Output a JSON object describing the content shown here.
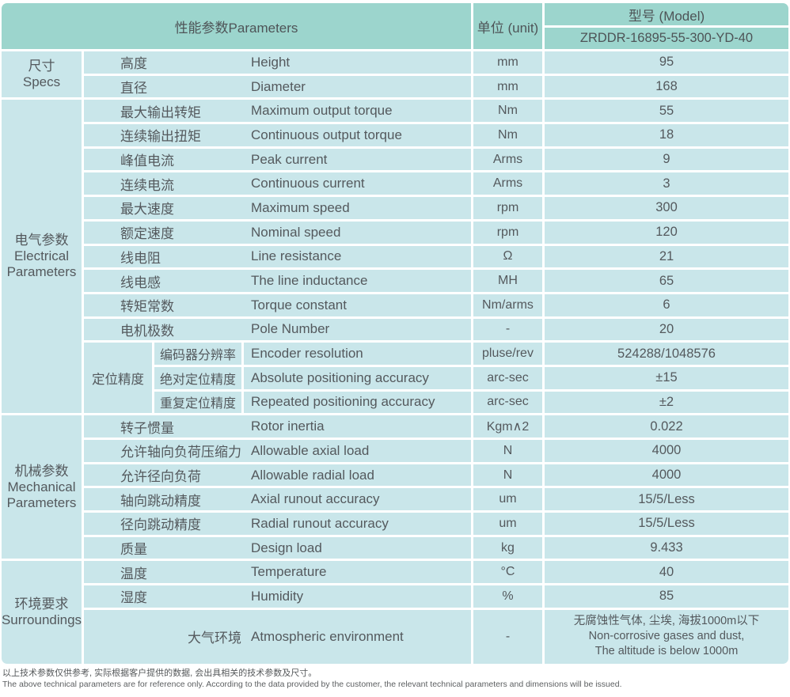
{
  "colors": {
    "header_bg": "#9cd5cd",
    "row_bg": "#c9e6ea",
    "text": "#54595d"
  },
  "header": {
    "parameters_label": "性能参数Parameters",
    "unit_label": "单位 (unit)",
    "model_label": "型号 (Model)",
    "model_value": "ZRDDR-16895-55-300-YD-40"
  },
  "categories": [
    {
      "lines": [
        "尺寸",
        "Specs"
      ]
    },
    {
      "lines": [
        "电气参数",
        "Electrical",
        "Parameters"
      ]
    },
    {
      "lines": [
        "机械参数",
        "Mechanical",
        "Parameters"
      ]
    },
    {
      "lines": [
        "环境要求",
        "Surroundings"
      ]
    }
  ],
  "positioning_group_label": "定位精度",
  "rows": [
    {
      "cn": "高度",
      "en": "Height",
      "unit": "mm",
      "value": "95"
    },
    {
      "cn": "直径",
      "en": "Diameter",
      "unit": "mm",
      "value": "168"
    },
    {
      "cn": "最大输出转矩",
      "en": "Maximum output torque",
      "unit": "Nm",
      "value": "55"
    },
    {
      "cn": "连续输出扭矩",
      "en": "Continuous output torque",
      "unit": "Nm",
      "value": "18"
    },
    {
      "cn": "峰值电流",
      "en": "Peak current",
      "unit": "Arms",
      "value": "9"
    },
    {
      "cn": "连续电流",
      "en": "Continuous current",
      "unit": "Arms",
      "value": "3"
    },
    {
      "cn": "最大速度",
      "en": "Maximum speed",
      "unit": "rpm",
      "value": "300"
    },
    {
      "cn": "额定速度",
      "en": "Nominal speed",
      "unit": "rpm",
      "value": "120"
    },
    {
      "cn": "线电阻",
      "en": "Line resistance",
      "unit": "Ω",
      "value": "21"
    },
    {
      "cn": "线电感",
      "en": "The line inductance",
      "unit": "MH",
      "value": "65"
    },
    {
      "cn": "转矩常数",
      "en": "Torque constant",
      "unit": "Nm/arms",
      "value": "6"
    },
    {
      "cn": "电机极数",
      "en": "Pole Number",
      "unit": "-",
      "value": "20"
    },
    {
      "cn": "编码器分辨率",
      "en": "Encoder resolution",
      "unit": "pluse/rev",
      "value": "524288/1048576"
    },
    {
      "cn": "绝对定位精度",
      "en": "Absolute positioning accuracy",
      "unit": "arc-sec",
      "value": "±15"
    },
    {
      "cn": "重复定位精度",
      "en": "Repeated positioning accuracy",
      "unit": "arc-sec",
      "value": "±2"
    },
    {
      "cn": "转子惯量",
      "en": "Rotor inertia",
      "unit": "Kgm∧2",
      "value": "0.022"
    },
    {
      "cn": "允许轴向负荷压缩力",
      "en": "Allowable axial load",
      "unit": "N",
      "value": "4000"
    },
    {
      "cn": "允许径向负荷",
      "en": "Allowable radial load",
      "unit": "N",
      "value": "4000"
    },
    {
      "cn": "轴向跳动精度",
      "en": "Axial runout accuracy",
      "unit": "um",
      "value": "15/5/Less"
    },
    {
      "cn": "径向跳动精度",
      "en": "Radial runout accuracy",
      "unit": "um",
      "value": "15/5/Less"
    },
    {
      "cn": "质量",
      "en": "Design load",
      "unit": "kg",
      "value": "9.433"
    },
    {
      "cn": "温度",
      "en": "Temperature",
      "unit": "°C",
      "value": "40"
    },
    {
      "cn": "湿度",
      "en": "Humidity",
      "unit": "%",
      "value": "85"
    },
    {
      "cn": "大气环境",
      "en": "Atmospheric environment",
      "unit": "-",
      "value_lines": [
        "无腐蚀性气体, 尘埃, 海拔1000m以下",
        "Non-corrosive gases and dust,",
        "The altitude is below 1000m"
      ]
    }
  ],
  "footer": {
    "line1": "以上技术参数仅供参考, 实际根据客户提供的数据, 会出具相关的技术参数及尺寸。",
    "line2": "The above technical parameters are for reference only. According to the data provided by the customer, the relevant technical parameters and dimensions will be issued."
  }
}
